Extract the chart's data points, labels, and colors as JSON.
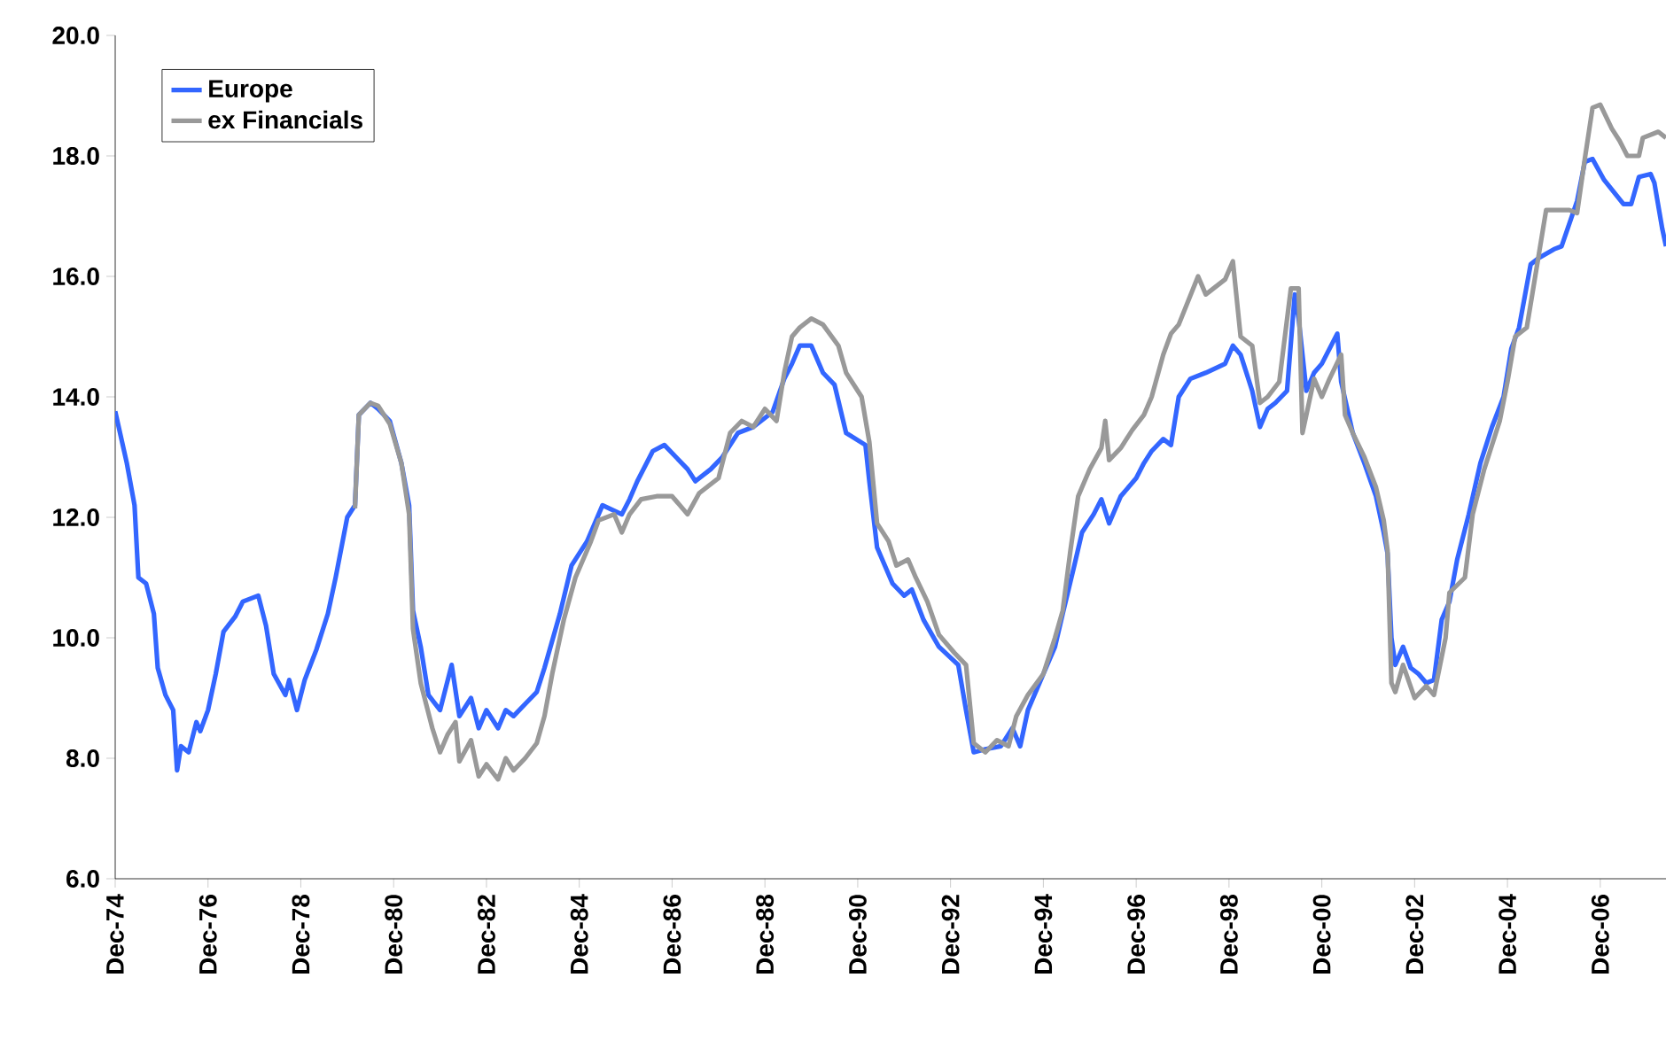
{
  "chart_data": {
    "type": "line",
    "legend": "top left",
    "grid": false,
    "marker": "none",
    "line_style": "solid",
    "xlim": [
      "1974-12",
      "2008-05"
    ],
    "ylim": [
      6,
      20
    ],
    "yticks": [
      {
        "value": 6,
        "label": "6.0"
      },
      {
        "value": 8,
        "label": "8.0"
      },
      {
        "value": 10,
        "label": "10.0"
      },
      {
        "value": 12,
        "label": "12.0"
      },
      {
        "value": 14,
        "label": "14.0"
      },
      {
        "value": 16,
        "label": "16.0"
      },
      {
        "value": 18,
        "label": "18.0"
      },
      {
        "value": 20,
        "label": "20.0"
      }
    ],
    "xticks": [
      {
        "value": "1974-12",
        "label": "Dec-74"
      },
      {
        "value": "1976-12",
        "label": "Dec-76"
      },
      {
        "value": "1978-12",
        "label": "Dec-78"
      },
      {
        "value": "1980-12",
        "label": "Dec-80"
      },
      {
        "value": "1982-12",
        "label": "Dec-82"
      },
      {
        "value": "1984-12",
        "label": "Dec-84"
      },
      {
        "value": "1986-12",
        "label": "Dec-86"
      },
      {
        "value": "1988-12",
        "label": "Dec-88"
      },
      {
        "value": "1990-12",
        "label": "Dec-90"
      },
      {
        "value": "1992-12",
        "label": "Dec-92"
      },
      {
        "value": "1994-12",
        "label": "Dec-94"
      },
      {
        "value": "1996-12",
        "label": "Dec-96"
      },
      {
        "value": "1998-12",
        "label": "Dec-98"
      },
      {
        "value": "2000-12",
        "label": "Dec-00"
      },
      {
        "value": "2002-12",
        "label": "Dec-02"
      },
      {
        "value": "2004-12",
        "label": "Dec-04"
      },
      {
        "value": "2006-12",
        "label": "Dec-06"
      }
    ],
    "series": [
      {
        "name": "Europe",
        "color": "#3366ff",
        "x": [
          "1974-12",
          "1975-03",
          "1975-05",
          "1975-06",
          "1975-08",
          "1975-10",
          "1975-11",
          "1976-01",
          "1976-03",
          "1976-04",
          "1976-05",
          "1976-07",
          "1976-09",
          "1976-10",
          "1976-12",
          "1977-02",
          "1977-04",
          "1977-07",
          "1977-09",
          "1978-01",
          "1978-03",
          "1978-05",
          "1978-08",
          "1978-09",
          "1978-11",
          "1979-01",
          "1979-04",
          "1979-07",
          "1979-09",
          "1979-12",
          "1980-02",
          "1980-03",
          "1980-06",
          "1980-08",
          "1980-11",
          "1981-02",
          "1981-04",
          "1981-05",
          "1981-07",
          "1981-09",
          "1981-12",
          "1982-03",
          "1982-05",
          "1982-08",
          "1982-10",
          "1982-12",
          "1983-03",
          "1983-05",
          "1983-07",
          "1983-10",
          "1984-01",
          "1984-03",
          "1984-07",
          "1984-10",
          "1985-02",
          "1985-06",
          "1985-11",
          "1986-01",
          "1986-03",
          "1986-07",
          "1986-10",
          "1987-01",
          "1987-04",
          "1987-06",
          "1987-10",
          "1988-01",
          "1988-05",
          "1988-09",
          "1989-02",
          "1989-05",
          "1989-07",
          "1989-09",
          "1989-12",
          "1990-03",
          "1990-06",
          "1990-09",
          "1991-02",
          "1991-03",
          "1991-05",
          "1991-09",
          "1991-12",
          "1992-02",
          "1992-05",
          "1992-09",
          "1993-02",
          "1993-04",
          "1993-06",
          "1993-09",
          "1994-01",
          "1994-04",
          "1994-06",
          "1994-08",
          "1994-12",
          "1995-03",
          "1995-05",
          "1995-08",
          "1995-10",
          "1996-01",
          "1996-03",
          "1996-05",
          "1996-08",
          "1996-12",
          "1997-02",
          "1997-04",
          "1997-07",
          "1997-09",
          "1997-11",
          "1998-02",
          "1998-06",
          "1998-11",
          "1999-01",
          "1999-03",
          "1999-06",
          "1999-08",
          "1999-10",
          "1999-12",
          "2000-03",
          "2000-05",
          "2000-06",
          "2000-08",
          "2000-10",
          "2000-12",
          "2001-04",
          "2001-05",
          "2001-08",
          "2001-11",
          "2002-02",
          "2002-04",
          "2002-05",
          "2002-06",
          "2002-07",
          "2002-09",
          "2002-11",
          "2003-01",
          "2003-03",
          "2003-05",
          "2003-07",
          "2003-09",
          "2003-11",
          "2004-02",
          "2004-05",
          "2004-08",
          "2004-11",
          "2005-01",
          "2005-03",
          "2005-06",
          "2005-08",
          "2005-12",
          "2006-02",
          "2006-06",
          "2006-08",
          "2006-10",
          "2007-01",
          "2007-06",
          "2007-08",
          "2007-10",
          "2008-01",
          "2008-02",
          "2008-04",
          "2008-05"
        ],
        "values": [
          13.76,
          12.9,
          12.2,
          11.0,
          10.9,
          10.4,
          9.5,
          9.05,
          8.8,
          7.8,
          8.2,
          8.1,
          8.6,
          8.45,
          8.8,
          9.4,
          10.1,
          10.35,
          10.6,
          10.7,
          10.2,
          9.4,
          9.05,
          9.3,
          8.8,
          9.3,
          9.8,
          10.4,
          11.0,
          12.0,
          12.2,
          13.7,
          13.9,
          13.8,
          13.6,
          12.9,
          12.2,
          10.45,
          9.85,
          9.05,
          8.8,
          9.55,
          8.7,
          9.0,
          8.5,
          8.8,
          8.5,
          8.8,
          8.7,
          8.9,
          9.1,
          9.5,
          10.4,
          11.2,
          11.6,
          12.2,
          12.05,
          12.3,
          12.6,
          13.1,
          13.2,
          13.0,
          12.8,
          12.6,
          12.8,
          13.0,
          13.4,
          13.5,
          13.75,
          14.3,
          14.55,
          14.85,
          14.85,
          14.4,
          14.2,
          13.4,
          13.2,
          12.6,
          11.5,
          10.9,
          10.7,
          10.8,
          10.3,
          9.85,
          9.55,
          8.8,
          8.1,
          8.15,
          8.2,
          8.5,
          8.2,
          8.8,
          9.4,
          9.85,
          10.4,
          11.2,
          11.75,
          12.05,
          12.3,
          11.9,
          12.35,
          12.65,
          12.9,
          13.1,
          13.3,
          13.2,
          14.0,
          14.3,
          14.4,
          14.55,
          14.85,
          14.7,
          14.1,
          13.5,
          13.8,
          13.9,
          14.1,
          15.7,
          15.3,
          14.1,
          14.4,
          14.55,
          15.05,
          14.25,
          13.4,
          12.9,
          12.35,
          11.75,
          11.4,
          10.0,
          9.55,
          9.85,
          9.5,
          9.4,
          9.25,
          9.3,
          10.3,
          10.6,
          11.3,
          12.05,
          12.9,
          13.5,
          14.0,
          14.8,
          15.15,
          16.2,
          16.3,
          16.45,
          16.5,
          17.25,
          17.9,
          17.95,
          17.6,
          17.2,
          17.2,
          17.65,
          17.7,
          17.55,
          16.8,
          16.5
        ]
      },
      {
        "name": "ex Financials",
        "color": "#999999",
        "x": [
          "1980-02",
          "1980-03",
          "1980-06",
          "1980-08",
          "1980-11",
          "1981-02",
          "1981-04",
          "1981-05",
          "1981-07",
          "1981-10",
          "1981-12",
          "1982-02",
          "1982-04",
          "1982-05",
          "1982-08",
          "1982-10",
          "1982-12",
          "1983-03",
          "1983-05",
          "1983-07",
          "1983-10",
          "1984-01",
          "1984-03",
          "1984-05",
          "1984-08",
          "1984-11",
          "1985-03",
          "1985-05",
          "1985-09",
          "1985-11",
          "1986-01",
          "1986-04",
          "1986-08",
          "1986-12",
          "1987-04",
          "1987-07",
          "1987-12",
          "1988-03",
          "1988-06",
          "1988-09",
          "1988-12",
          "1989-03",
          "1989-05",
          "1989-07",
          "1989-09",
          "1989-12",
          "1990-03",
          "1990-07",
          "1990-09",
          "1991-01",
          "1991-03",
          "1991-05",
          "1991-08",
          "1991-10",
          "1992-01",
          "1992-03",
          "1992-06",
          "1992-09",
          "1993-01",
          "1993-04",
          "1993-06",
          "1993-09",
          "1993-12",
          "1994-03",
          "1994-05",
          "1994-08",
          "1994-12",
          "1995-03",
          "1995-05",
          "1995-07",
          "1995-09",
          "1995-12",
          "1996-03",
          "1996-04",
          "1996-05",
          "1996-08",
          "1996-11",
          "1997-02",
          "1997-04",
          "1997-07",
          "1997-09",
          "1997-11",
          "1998-04",
          "1998-06",
          "1998-11",
          "1999-01",
          "1999-03",
          "1999-06",
          "1999-08",
          "1999-10",
          "2000-01",
          "2000-04",
          "2000-06",
          "2000-07",
          "2000-10",
          "2000-12",
          "2001-02",
          "2001-05",
          "2001-06",
          "2001-08",
          "2001-11",
          "2002-02",
          "2002-04",
          "2002-05",
          "2002-06",
          "2002-07",
          "2002-09",
          "2002-12",
          "2003-03",
          "2003-05",
          "2003-08",
          "2003-09",
          "2004-01",
          "2004-03",
          "2004-06",
          "2004-10",
          "2004-12",
          "2005-02",
          "2005-05",
          "2005-10",
          "2006-04",
          "2006-06",
          "2006-08",
          "2006-10",
          "2006-12",
          "2007-03",
          "2007-05",
          "2007-07",
          "2007-10",
          "2007-11",
          "2008-03",
          "2008-05"
        ],
        "values": [
          12.15,
          13.7,
          13.9,
          13.85,
          13.55,
          12.9,
          12.05,
          10.15,
          9.25,
          8.5,
          8.1,
          8.4,
          8.6,
          7.95,
          8.3,
          7.7,
          7.9,
          7.65,
          8.0,
          7.8,
          8.0,
          8.25,
          8.7,
          9.4,
          10.3,
          11.0,
          11.6,
          11.95,
          12.05,
          11.75,
          12.05,
          12.3,
          12.35,
          12.35,
          12.05,
          12.4,
          12.65,
          13.4,
          13.6,
          13.5,
          13.8,
          13.6,
          14.4,
          15.0,
          15.15,
          15.3,
          15.2,
          14.85,
          14.4,
          14.0,
          13.25,
          11.9,
          11.6,
          11.2,
          11.3,
          11.0,
          10.6,
          10.05,
          9.75,
          9.55,
          8.25,
          8.1,
          8.3,
          8.2,
          8.7,
          9.05,
          9.4,
          10.0,
          10.45,
          11.45,
          12.35,
          12.8,
          13.15,
          13.6,
          12.95,
          13.15,
          13.45,
          13.7,
          14.0,
          14.7,
          15.05,
          15.2,
          16.0,
          15.7,
          15.95,
          16.25,
          15.0,
          14.85,
          13.9,
          14.0,
          14.25,
          15.8,
          15.8,
          13.4,
          14.3,
          14.0,
          14.3,
          14.7,
          13.7,
          13.4,
          13.0,
          12.5,
          11.95,
          11.45,
          9.25,
          9.1,
          9.55,
          9.0,
          9.2,
          9.05,
          10.0,
          10.75,
          11.0,
          12.05,
          12.8,
          13.6,
          14.25,
          15.0,
          15.15,
          17.1,
          17.1,
          17.05,
          17.95,
          18.8,
          18.85,
          18.45,
          18.25,
          18.0,
          18.0,
          18.3,
          18.4,
          18.3
        ]
      }
    ]
  }
}
